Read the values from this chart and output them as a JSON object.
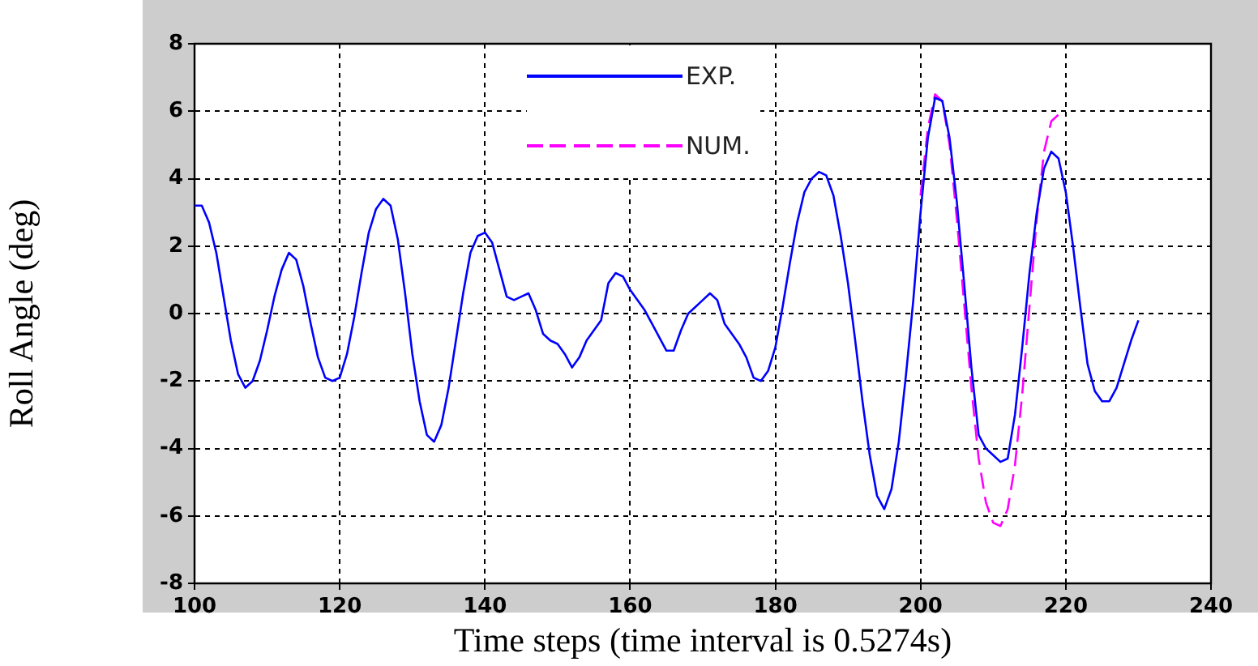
{
  "chart_data": {
    "type": "line",
    "xlabel": "Time steps (time interval is 0.5274s)",
    "ylabel": "Roll Angle (deg)",
    "xlim": [
      100,
      240
    ],
    "xticks": [
      100,
      120,
      140,
      160,
      180,
      200,
      220,
      240
    ],
    "ylim": [
      -8,
      8
    ],
    "yticks": [
      -8,
      -6,
      -4,
      -2,
      0,
      2,
      4,
      6,
      8
    ],
    "grid": true,
    "legend": "top",
    "marker": "none",
    "series": [
      {
        "name": "EXP.",
        "color": "#0000ff",
        "line_style": "solid",
        "x": [
          100,
          101,
          102,
          103,
          104,
          105,
          106,
          107,
          108,
          109,
          110,
          111,
          112,
          113,
          114,
          115,
          116,
          117,
          118,
          119,
          120,
          121,
          122,
          123,
          124,
          125,
          126,
          127,
          128,
          129,
          130,
          131,
          132,
          133,
          134,
          135,
          136,
          137,
          138,
          139,
          140,
          141,
          142,
          143,
          144,
          145,
          146,
          147,
          148,
          149,
          150,
          151,
          152,
          153,
          154,
          155,
          156,
          157,
          158,
          159,
          160,
          161,
          162,
          163,
          164,
          165,
          166,
          167,
          168,
          169,
          170,
          171,
          172,
          173,
          174,
          175,
          176,
          177,
          178,
          179,
          180,
          181,
          182,
          183,
          184,
          185,
          186,
          187,
          188,
          189,
          190,
          191,
          192,
          193,
          194,
          195,
          196,
          197,
          198,
          199,
          200,
          201,
          202,
          203,
          204,
          205,
          206,
          207,
          208,
          209,
          210,
          211,
          212,
          213,
          214,
          215,
          216,
          217,
          218,
          219,
          220,
          221,
          222,
          223,
          224,
          225,
          226,
          227,
          228,
          229,
          230
        ],
        "values": [
          3.2,
          3.2,
          2.7,
          1.8,
          0.5,
          -0.8,
          -1.8,
          -2.2,
          -2.0,
          -1.4,
          -0.5,
          0.5,
          1.3,
          1.8,
          1.6,
          0.8,
          -0.3,
          -1.3,
          -1.9,
          -2.0,
          -1.9,
          -1.2,
          -0.1,
          1.2,
          2.4,
          3.1,
          3.4,
          3.2,
          2.2,
          0.6,
          -1.2,
          -2.6,
          -3.6,
          -3.8,
          -3.3,
          -2.2,
          -0.8,
          0.6,
          1.8,
          2.3,
          2.4,
          2.1,
          1.3,
          0.5,
          0.4,
          0.5,
          0.6,
          0.1,
          -0.6,
          -0.8,
          -0.9,
          -1.2,
          -1.6,
          -1.3,
          -0.8,
          -0.5,
          -0.2,
          0.9,
          1.2,
          1.1,
          0.7,
          0.4,
          0.1,
          -0.3,
          -0.7,
          -1.1,
          -1.1,
          -0.5,
          0.0,
          0.2,
          0.4,
          0.6,
          0.4,
          -0.3,
          -0.6,
          -0.9,
          -1.3,
          -1.9,
          -2.0,
          -1.7,
          -1.0,
          0.2,
          1.5,
          2.7,
          3.6,
          4.0,
          4.2,
          4.1,
          3.5,
          2.3,
          0.9,
          -0.8,
          -2.6,
          -4.2,
          -5.4,
          -5.8,
          -5.2,
          -3.8,
          -1.8,
          0.4,
          3.0,
          5.2,
          6.4,
          6.3,
          5.2,
          3.3,
          0.9,
          -1.6,
          -3.6,
          -4.0,
          -4.2,
          -4.4,
          -4.3,
          -3.0,
          -1.0,
          1.2,
          3.0,
          4.3,
          4.8,
          4.6,
          3.6,
          2.0,
          0.2,
          -1.5,
          -2.3,
          -2.6,
          -2.6,
          -2.2,
          -1.5,
          -0.8,
          -0.2
        ]
      },
      {
        "name": "NUM.",
        "color": "#ff00ff",
        "line_style": "dashed",
        "x": [
          200,
          201,
          202,
          203,
          204,
          205,
          206,
          207,
          208,
          209,
          210,
          211,
          212,
          213,
          214,
          215,
          216,
          217,
          218,
          219
        ],
        "values": [
          3.5,
          5.5,
          6.5,
          6.3,
          5.0,
          2.8,
          0.3,
          -2.2,
          -4.3,
          -5.6,
          -6.2,
          -6.3,
          -5.8,
          -4.5,
          -2.4,
          0.2,
          2.8,
          4.8,
          5.7,
          5.9
        ]
      }
    ]
  }
}
